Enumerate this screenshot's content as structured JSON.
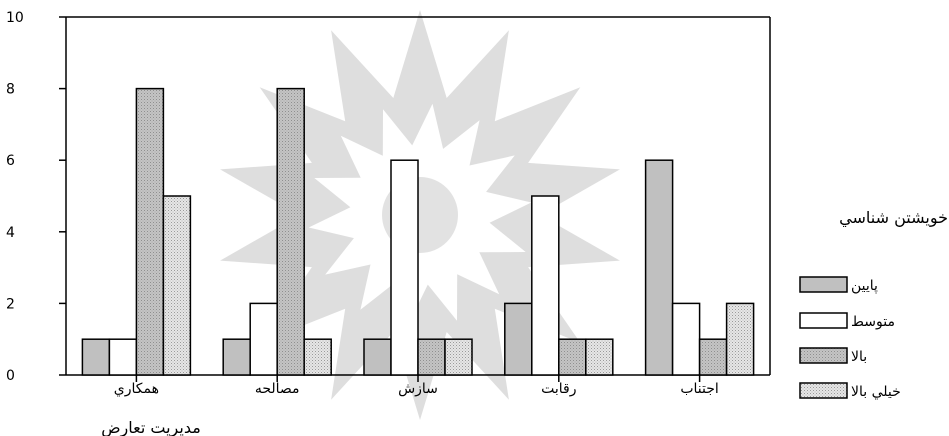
{
  "chart_data": {
    "type": "bar",
    "categories": [
      "همكاري",
      "مصالحه",
      "سازش",
      "رقابت",
      "اجتناب"
    ],
    "series": [
      {
        "name": "پايين",
        "values": [
          1,
          1,
          1,
          2,
          6
        ],
        "color": "#c0c0c0",
        "pattern": "solid"
      },
      {
        "name": "متوسط",
        "values": [
          1,
          2,
          6,
          5,
          2
        ],
        "color": "#ffffff",
        "pattern": "none"
      },
      {
        "name": "بالا",
        "values": [
          8,
          8,
          1,
          1,
          1
        ],
        "color": "#c8c8c8",
        "pattern": "fine-dots"
      },
      {
        "name": "خيلي بالا",
        "values": [
          5,
          1,
          1,
          1,
          2
        ],
        "color": "#d8d8d8",
        "pattern": "dots"
      }
    ],
    "xlabel": "مديريت تعارض",
    "ylabel": "",
    "ylim": [
      0,
      10
    ],
    "yticks": [
      0,
      2,
      4,
      6,
      8,
      10
    ],
    "grid": false,
    "legend": {
      "title": "خويشتن شناسي",
      "placement": "right"
    }
  }
}
